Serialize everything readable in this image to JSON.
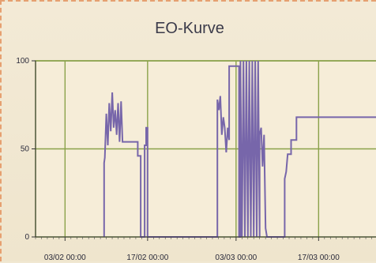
{
  "chart_data": {
    "type": "line",
    "title": "EO-Kurve",
    "xlabel": "",
    "ylabel": "",
    "ylim": [
      0,
      100
    ],
    "xlim": [
      "2012-01-29 00:00",
      "2012-03-27 00:00"
    ],
    "x_ticks": [
      "03/02 00:00",
      "17/02 00:00",
      "03/03 00:00",
      "17/03 00:00"
    ],
    "y_ticks": [
      0,
      50,
      100
    ],
    "grid": true,
    "colors": {
      "line": "#7766aa",
      "grid": "#8aa24a",
      "plot_background": "#f6edd8",
      "plot_border": "#7f9a3e"
    },
    "series": [
      {
        "values": [
          [
            "2012-02-09 15:00",
            0
          ],
          [
            "2012-02-09 15:00",
            42
          ],
          [
            "2012-02-09 18:00",
            45
          ],
          [
            "2012-02-10 00:00",
            70
          ],
          [
            "2012-02-10 06:00",
            52
          ],
          [
            "2012-02-10 12:00",
            76
          ],
          [
            "2012-02-10 18:00",
            60
          ],
          [
            "2012-02-11 00:00",
            82
          ],
          [
            "2012-02-11 06:00",
            62
          ],
          [
            "2012-02-11 12:00",
            72
          ],
          [
            "2012-02-11 18:00",
            58
          ],
          [
            "2012-02-12 00:00",
            76
          ],
          [
            "2012-02-12 06:00",
            54
          ],
          [
            "2012-02-12 12:00",
            77
          ],
          [
            "2012-02-12 18:00",
            54
          ],
          [
            "2012-02-15 08:00",
            54
          ],
          [
            "2012-02-15 08:00",
            46
          ],
          [
            "2012-02-15 20:00",
            46
          ],
          [
            "2012-02-15 20:00",
            0
          ],
          [
            "2012-02-16 12:00",
            0
          ],
          [
            "2012-02-16 12:00",
            52
          ],
          [
            "2012-02-16 18:00",
            52
          ],
          [
            "2012-02-16 18:00",
            62
          ],
          [
            "2012-02-17 00:00",
            62
          ],
          [
            "2012-02-17 00:00",
            0
          ],
          [
            "2012-02-28 20:00",
            0
          ],
          [
            "2012-02-28 20:00",
            78
          ],
          [
            "2012-02-29 02:00",
            72
          ],
          [
            "2012-02-29 08:00",
            80
          ],
          [
            "2012-02-29 14:00",
            58
          ],
          [
            "2012-02-29 20:00",
            68
          ],
          [
            "2012-03-01 02:00",
            62
          ],
          [
            "2012-03-01 08:00",
            48
          ],
          [
            "2012-03-01 14:00",
            62
          ],
          [
            "2012-03-01 20:00",
            55
          ],
          [
            "2012-03-01 20:00",
            97
          ],
          [
            "2012-03-03 12:00",
            97
          ],
          [
            "2012-03-03 12:00",
            0
          ],
          [
            "2012-03-03 18:00",
            0
          ],
          [
            "2012-03-03 18:00",
            100
          ],
          [
            "2012-03-04 00:00",
            0
          ],
          [
            "2012-03-04 06:00",
            100
          ],
          [
            "2012-03-04 12:00",
            0
          ],
          [
            "2012-03-04 18:00",
            100
          ],
          [
            "2012-03-05 00:00",
            0
          ],
          [
            "2012-03-05 06:00",
            100
          ],
          [
            "2012-03-05 12:00",
            0
          ],
          [
            "2012-03-05 18:00",
            100
          ],
          [
            "2012-03-06 00:00",
            0
          ],
          [
            "2012-03-06 06:00",
            100
          ],
          [
            "2012-03-06 12:00",
            0
          ],
          [
            "2012-03-06 18:00",
            100
          ],
          [
            "2012-03-07 00:00",
            0
          ],
          [
            "2012-03-07 00:00",
            58
          ],
          [
            "2012-03-07 06:00",
            62
          ],
          [
            "2012-03-07 12:00",
            40
          ],
          [
            "2012-03-07 18:00",
            58
          ],
          [
            "2012-03-08 00:00",
            5
          ],
          [
            "2012-03-08 06:00",
            0
          ],
          [
            "2012-03-11 06:00",
            0
          ],
          [
            "2012-03-11 06:00",
            33
          ],
          [
            "2012-03-11 12:00",
            37
          ],
          [
            "2012-03-11 18:00",
            47
          ],
          [
            "2012-03-12 08:00",
            47
          ],
          [
            "2012-03-12 08:00",
            55
          ],
          [
            "2012-03-13 06:00",
            55
          ],
          [
            "2012-03-13 06:00",
            68
          ],
          [
            "2012-03-27 00:00",
            68
          ]
        ]
      }
    ]
  }
}
